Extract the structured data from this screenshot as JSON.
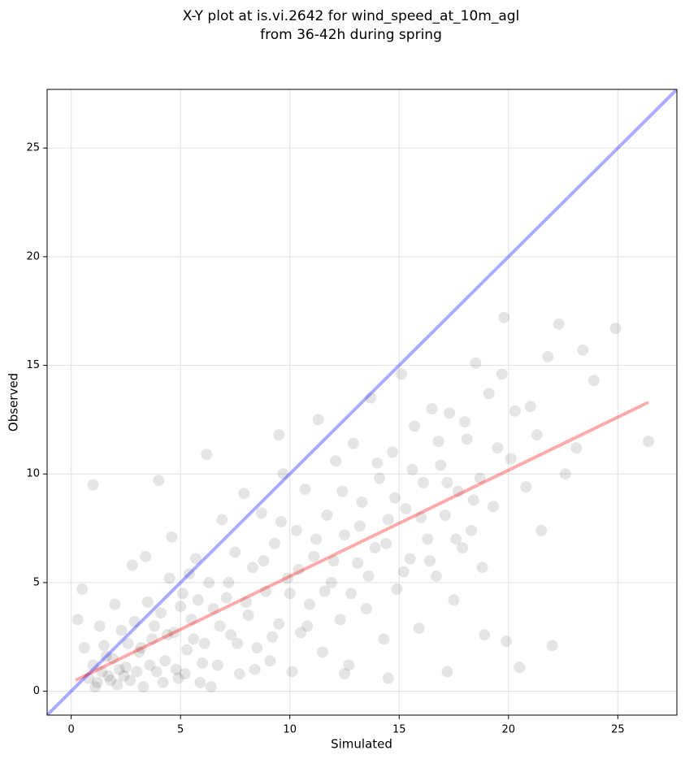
{
  "chart_data": {
    "type": "scatter",
    "title": [
      "X-Y plot at is.vi.2642 for wind_speed_at_10m_agl",
      "from 36-42h during spring"
    ],
    "xlabel": "Simulated",
    "ylabel": "Observed",
    "xlim": [
      -1.1,
      27.7
    ],
    "ylim": [
      -1.1,
      27.7
    ],
    "xticks": [
      0,
      5,
      10,
      15,
      20,
      25
    ],
    "yticks": [
      0,
      5,
      10,
      15,
      20,
      25
    ],
    "grid": true,
    "color": "#000000",
    "x": [
      0.8,
      1.0,
      1.2,
      1.4,
      1.5,
      1.7,
      1.9,
      2.1,
      2.3,
      2.5,
      2.7,
      2.9,
      3.1,
      3.3,
      3.5,
      3.7,
      3.9,
      4.1,
      4.3,
      4.5,
      4.7,
      4.9,
      5.1,
      5.3,
      5.5,
      5.7,
      5.9,
      6.1,
      6.3,
      6.5,
      6.7,
      6.9,
      7.1,
      7.3,
      7.5,
      7.7,
      7.9,
      8.1,
      8.3,
      8.5,
      8.7,
      8.9,
      9.1,
      9.3,
      9.5,
      9.7,
      9.9,
      10.1,
      10.3,
      10.5,
      10.7,
      10.9,
      11.1,
      11.3,
      11.5,
      11.7,
      11.9,
      12.1,
      12.3,
      12.5,
      12.7,
      12.9,
      13.1,
      13.3,
      13.5,
      13.7,
      13.9,
      14.1,
      14.3,
      14.5,
      14.7,
      14.9,
      15.1,
      15.3,
      15.5,
      15.7,
      15.9,
      16.1,
      16.3,
      16.5,
      16.7,
      16.9,
      17.1,
      17.3,
      17.5,
      17.7,
      17.9,
      18.1,
      18.3,
      18.5,
      18.7,
      18.9,
      19.1,
      19.3,
      19.5,
      19.7,
      19.9,
      20.1,
      20.3,
      20.5,
      20.8,
      21.0,
      21.3,
      21.5,
      21.8,
      22.0,
      22.3,
      22.6,
      23.1,
      23.4,
      23.9,
      24.9,
      26.4,
      1.0,
      4.0,
      6.2,
      9.5,
      19.8,
      0.3,
      0.5,
      0.6,
      1.1,
      1.3,
      1.6,
      1.8,
      2.0,
      2.2,
      2.4,
      2.6,
      2.8,
      3.0,
      3.2,
      3.4,
      3.6,
      3.8,
      4.2,
      4.4,
      4.6,
      4.8,
      5.0,
      5.2,
      5.4,
      5.6,
      5.8,
      6.0,
      6.4,
      6.8,
      7.2,
      7.6,
      8.0,
      8.4,
      8.8,
      9.2,
      9.6,
      10.0,
      10.4,
      10.8,
      11.2,
      11.6,
      12.0,
      12.4,
      12.8,
      13.2,
      13.6,
      14.0,
      14.4,
      14.8,
      15.2,
      15.6,
      16.0,
      16.4,
      16.8,
      17.2,
      17.6,
      18.0,
      18.4,
      18.8,
      12.5,
      14.5,
      17.2
    ],
    "values": [
      0.6,
      1.2,
      0.4,
      0.9,
      2.1,
      0.7,
      1.5,
      0.3,
      2.8,
      1.1,
      0.5,
      3.2,
      1.8,
      0.2,
      4.1,
      2.4,
      0.9,
      3.6,
      1.4,
      5.2,
      2.7,
      0.6,
      4.5,
      1.9,
      3.3,
      6.1,
      0.4,
      2.2,
      5.0,
      3.8,
      1.2,
      7.9,
      4.3,
      2.6,
      6.4,
      0.8,
      9.1,
      3.5,
      5.7,
      2.0,
      8.2,
      4.6,
      1.4,
      6.8,
      3.1,
      10.0,
      5.2,
      0.9,
      7.4,
      2.7,
      9.3,
      4.0,
      6.2,
      12.5,
      1.8,
      8.1,
      5.0,
      10.6,
      3.3,
      7.2,
      1.2,
      11.4,
      5.9,
      8.7,
      3.8,
      13.5,
      6.6,
      9.8,
      2.4,
      7.9,
      11.0,
      4.7,
      14.6,
      8.4,
      6.1,
      12.2,
      2.9,
      9.6,
      7.0,
      13.0,
      5.3,
      10.4,
      8.1,
      12.8,
      4.2,
      9.2,
      6.6,
      11.6,
      7.4,
      15.1,
      9.8,
      2.6,
      13.7,
      8.5,
      11.2,
      14.6,
      2.3,
      10.7,
      12.9,
      1.1,
      9.4,
      13.1,
      11.8,
      7.4,
      15.4,
      2.1,
      16.9,
      10.0,
      11.2,
      15.7,
      14.3,
      16.7,
      11.5,
      9.5,
      9.7,
      10.9,
      11.8,
      17.2,
      3.3,
      4.7,
      2.0,
      0.2,
      3.0,
      1.6,
      0.5,
      4.0,
      1.0,
      0.7,
      2.2,
      5.8,
      0.9,
      2.0,
      6.2,
      1.2,
      3.0,
      0.4,
      2.6,
      7.1,
      1.0,
      3.9,
      0.8,
      5.4,
      2.4,
      4.2,
      1.3,
      0.2,
      3.0,
      5.0,
      2.2,
      4.1,
      1.0,
      6.0,
      2.5,
      7.8,
      4.5,
      5.6,
      3.0,
      7.0,
      4.6,
      6.0,
      9.2,
      4.5,
      7.6,
      5.3,
      10.5,
      6.8,
      8.9,
      5.5,
      10.2,
      8.0,
      6.0,
      11.5,
      9.6,
      7.0,
      12.4,
      8.8,
      5.7,
      0.8,
      0.6,
      0.9
    ],
    "lines": [
      {
        "color": "#0000ff",
        "x": [
          -1.1,
          27.7
        ],
        "y": [
          -1.1,
          27.7
        ]
      },
      {
        "color": "#ff0000",
        "x": [
          0.2,
          26.4
        ],
        "y": [
          0.5,
          13.3
        ]
      }
    ]
  }
}
